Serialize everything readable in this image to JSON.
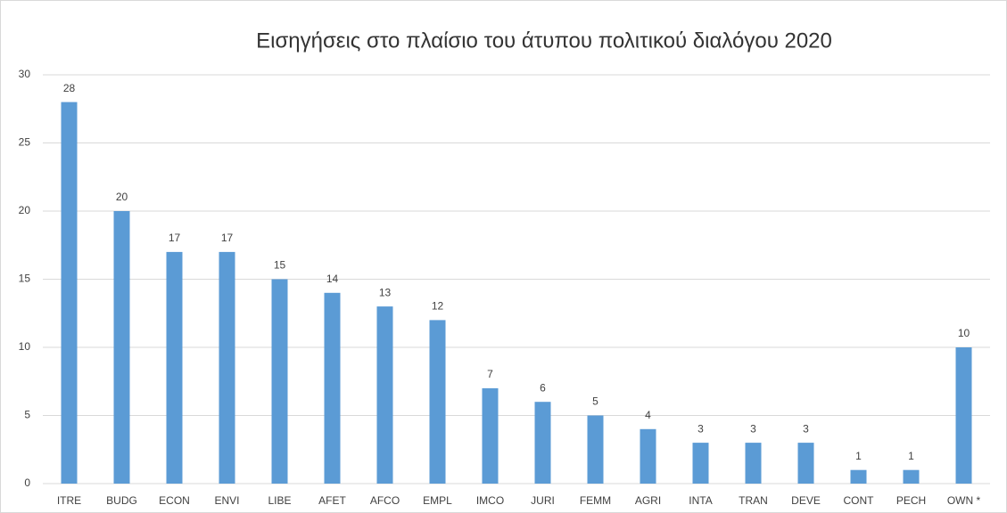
{
  "chart_data": {
    "type": "bar",
    "title": "Εισηγήσεις στο πλαίσιο του άτυπου πολιτικού διαλόγου 2020",
    "categories": [
      "ITRE",
      "BUDG",
      "ECON",
      "ENVI",
      "LIBE",
      "AFET",
      "AFCO",
      "EMPL",
      "IMCO",
      "JURI",
      "FEMM",
      "AGRI",
      "INTA",
      "TRAN",
      "DEVE",
      "CONT",
      "PECH",
      "OWN *"
    ],
    "values": [
      28,
      20,
      17,
      17,
      15,
      14,
      13,
      12,
      7,
      6,
      5,
      4,
      3,
      3,
      3,
      1,
      1,
      10
    ],
    "color": "#5b9bd5",
    "ylim": [
      0,
      30
    ],
    "yticks": [
      0,
      5,
      10,
      15,
      20,
      25,
      30
    ],
    "grid": true
  }
}
